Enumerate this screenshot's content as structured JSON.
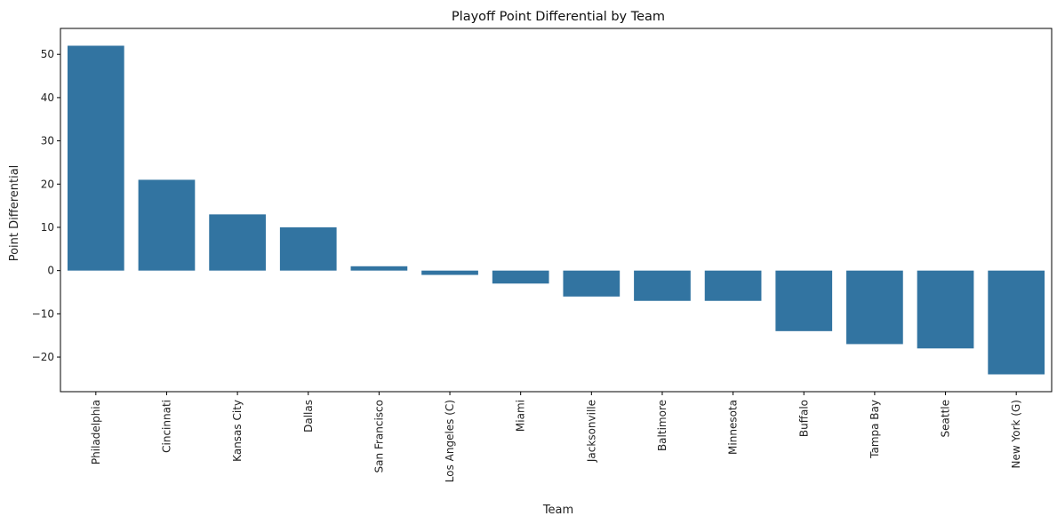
{
  "chart_data": {
    "type": "bar",
    "title": "Playoff Point Differential by Team",
    "xlabel": "Team",
    "ylabel": "Point Differential",
    "categories": [
      "Philadelphia",
      "Cincinnati",
      "Kansas City",
      "Dallas",
      "San Francisco",
      "Los Angeles (C)",
      "Miami",
      "Jacksonville",
      "Baltimore",
      "Minnesota",
      "Buffalo",
      "Tampa Bay",
      "Seattle",
      "New York (G)"
    ],
    "values": [
      52,
      21,
      13,
      10,
      1,
      -1,
      -3,
      -6,
      -7,
      -7,
      -14,
      -17,
      -18,
      -24
    ],
    "ylim": [
      -28,
      56
    ],
    "yticks": [
      -20,
      -10,
      0,
      10,
      20,
      30,
      40,
      50
    ],
    "bar_color": "#3274a1",
    "grid": false,
    "legend": "none"
  }
}
